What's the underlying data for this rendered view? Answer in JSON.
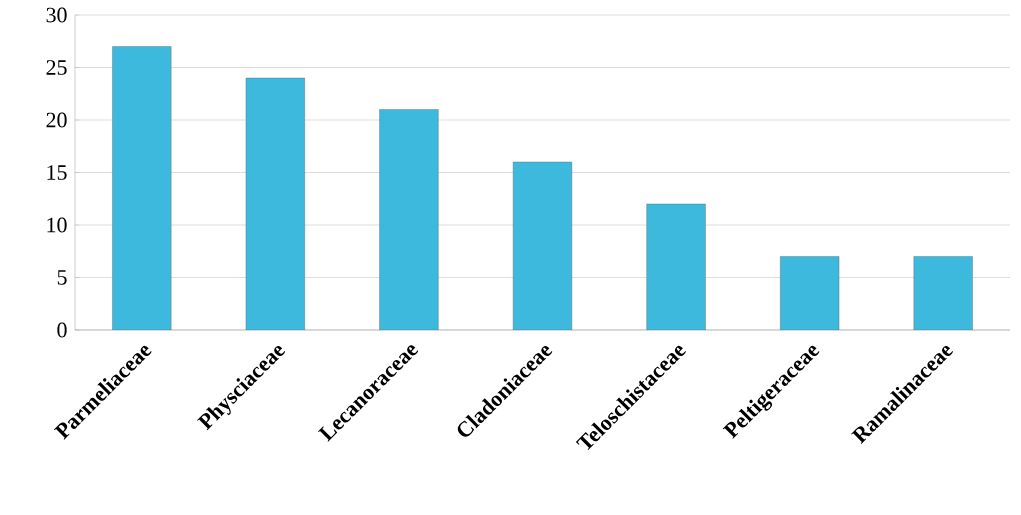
{
  "chart_data": {
    "type": "bar",
    "categories": [
      "Parmeliaceae",
      "Physciaceae",
      "Lecanoraceae",
      "Cladoniaceae",
      "Teloschistaceae",
      "Peltigeraceae",
      "Ramalinaceae"
    ],
    "values": [
      27,
      24,
      21,
      16,
      12,
      7,
      7
    ],
    "color": "#3cb9dc",
    "ylim": [
      0,
      30
    ],
    "yticks": [
      0,
      5,
      10,
      15,
      20,
      25,
      30
    ],
    "grid": "y"
  }
}
